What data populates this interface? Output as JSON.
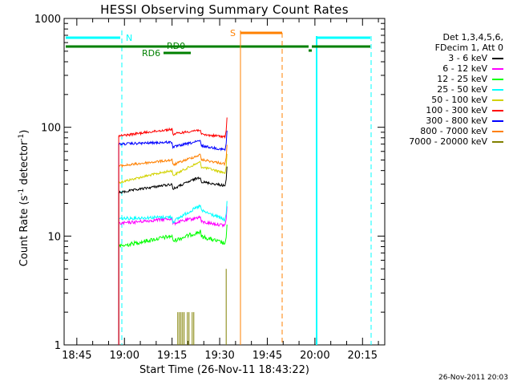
{
  "chart_data": {
    "type": "line",
    "title": "HESSI Observing Summary Count Rates",
    "xlabel": "Start Time (26-Nov-11 18:43:22)",
    "ylabel": "Count Rate (s",
    "ylabel_sup1": "-1",
    "ylabel_mid": " detector",
    "ylabel_sup2": "-1",
    "ylabel_end": ")",
    "y_scale": "log",
    "ylim": [
      1,
      1000
    ],
    "xlim": [
      "18:41",
      "20:22"
    ],
    "x_ticks": [
      "18:45",
      "19:00",
      "19:15",
      "19:30",
      "19:45",
      "20:00",
      "20:15"
    ],
    "y_ticks": [
      "1",
      "10",
      "100",
      "1000"
    ],
    "grid": false,
    "legend_position": "right",
    "legend_header": [
      "Det 1,3,4,5,6,",
      "FDecim 1, Att 0"
    ],
    "series": [
      {
        "name": "3 - 6 keV",
        "color": "#000000",
        "values": [
          [
            18.97,
            25
          ],
          [
            19.25,
            30
          ],
          [
            19.4,
            35
          ],
          [
            19.53,
            29
          ]
        ]
      },
      {
        "name": "6 - 12 keV",
        "color": "#ff00ff",
        "values": [
          [
            18.97,
            13
          ],
          [
            19.25,
            14.5
          ],
          [
            19.4,
            15
          ],
          [
            19.53,
            12.5
          ]
        ]
      },
      {
        "name": "12 - 25 keV",
        "color": "#00ff00",
        "values": [
          [
            18.97,
            8
          ],
          [
            19.25,
            10
          ],
          [
            19.4,
            11
          ],
          [
            19.53,
            8.5
          ]
        ]
      },
      {
        "name": "25 - 50 keV",
        "color": "#00ffff",
        "values": [
          [
            18.97,
            14.5
          ],
          [
            19.25,
            15
          ],
          [
            19.4,
            19
          ],
          [
            19.53,
            14
          ]
        ]
      },
      {
        "name": "50 - 100 keV",
        "color": "#d2d200",
        "values": [
          [
            18.97,
            31
          ],
          [
            19.25,
            40
          ],
          [
            19.4,
            48
          ],
          [
            19.53,
            38
          ]
        ]
      },
      {
        "name": "100 - 300 keV",
        "color": "#ff0000",
        "values": [
          [
            18.97,
            83
          ],
          [
            19.25,
            96
          ],
          [
            19.4,
            95
          ],
          [
            19.53,
            82
          ]
        ]
      },
      {
        "name": "300 - 800 keV",
        "color": "#0000ff",
        "values": [
          [
            18.97,
            70
          ],
          [
            19.25,
            73
          ],
          [
            19.4,
            75
          ],
          [
            19.53,
            62
          ]
        ]
      },
      {
        "name": "800 - 7000 keV",
        "color": "#ff8000",
        "values": [
          [
            18.97,
            44
          ],
          [
            19.25,
            50
          ],
          [
            19.4,
            56
          ],
          [
            19.53,
            46
          ]
        ]
      },
      {
        "name": "7000 - 20000 keV",
        "color": "#808000",
        "values": [
          [
            19.25,
            1
          ],
          [
            19.5,
            1
          ]
        ]
      }
    ],
    "annotations": [
      {
        "label": "N",
        "color": "#00ffff"
      },
      {
        "label": "RD0",
        "color": "#008000"
      },
      {
        "label": "RD6",
        "color": "#008000"
      },
      {
        "label": "S",
        "color": "#ff8000"
      }
    ]
  },
  "footer": {
    "timestamp": "26-Nov-2011 20:03"
  }
}
